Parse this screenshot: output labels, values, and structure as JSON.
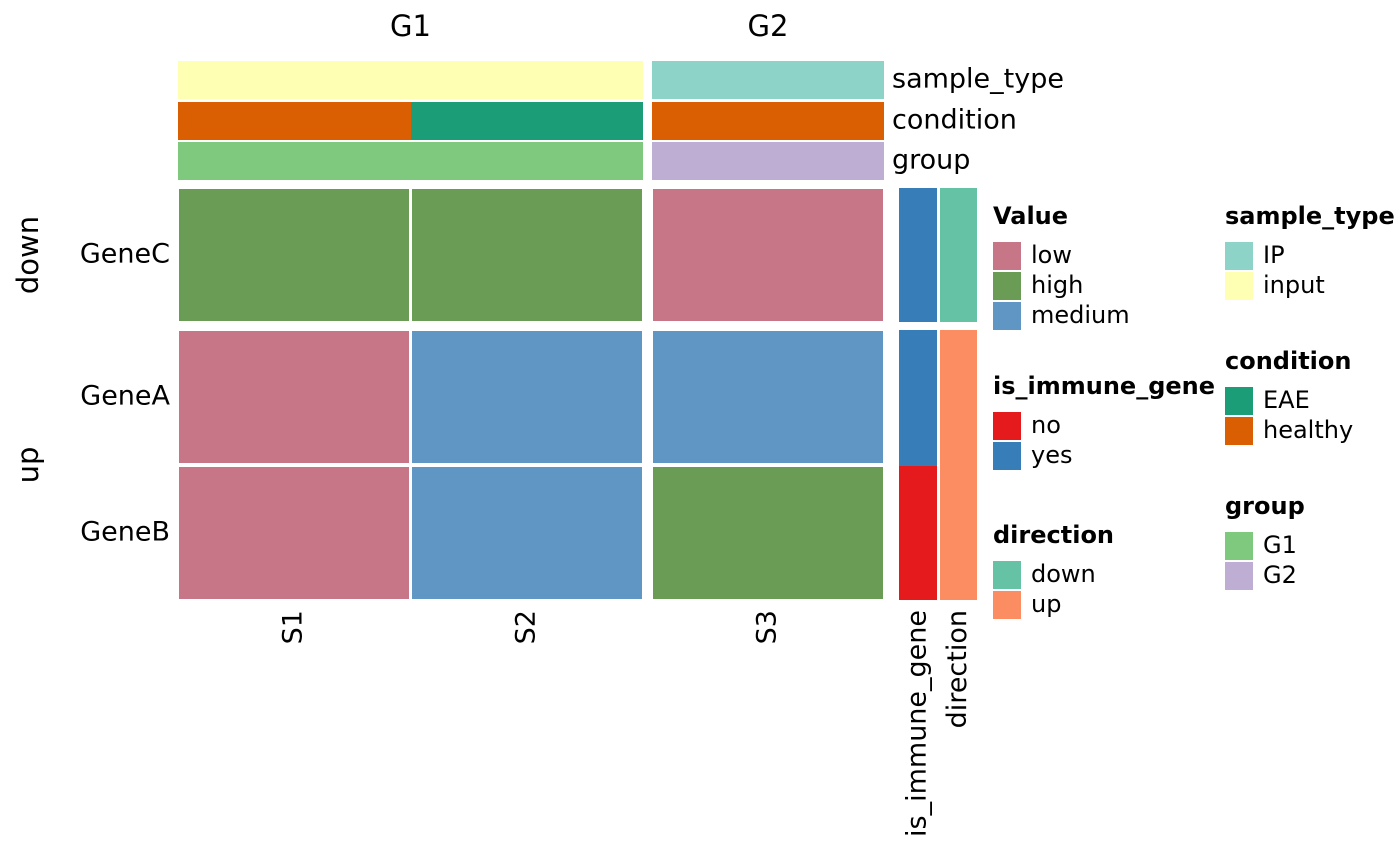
{
  "chart_data": {
    "type": "heatmap",
    "column_splits": [
      {
        "name": "G1",
        "columns": [
          "S1",
          "S2"
        ]
      },
      {
        "name": "G2",
        "columns": [
          "S3"
        ]
      }
    ],
    "row_splits": [
      {
        "name": "down",
        "rows": [
          "GeneC"
        ]
      },
      {
        "name": "up",
        "rows": [
          "GeneA",
          "GeneB"
        ]
      }
    ],
    "values": [
      [
        "high",
        "high",
        "low"
      ],
      [
        "low",
        "medium",
        "medium"
      ],
      [
        "low",
        "medium",
        "high"
      ]
    ],
    "value_legend": {
      "title": "Value",
      "levels": [
        {
          "label": "low",
          "color": "#c67686"
        },
        {
          "label": "high",
          "color": "#6a9c55"
        },
        {
          "label": "medium",
          "color": "#6096c3"
        }
      ]
    },
    "column_annotations": [
      {
        "name": "sample_type",
        "values": [
          "input",
          "input",
          "IP"
        ],
        "levels": [
          {
            "label": "IP",
            "color": "#8dd3c7"
          },
          {
            "label": "input",
            "color": "#ffffb3"
          }
        ]
      },
      {
        "name": "condition",
        "values": [
          "healthy",
          "EAE",
          "healthy"
        ],
        "levels": [
          {
            "label": "EAE",
            "color": "#1b9e77"
          },
          {
            "label": "healthy",
            "color": "#d95f02"
          }
        ]
      },
      {
        "name": "group",
        "values": [
          "G1",
          "G1",
          "G2"
        ],
        "levels": [
          {
            "label": "G1",
            "color": "#7fc97f"
          },
          {
            "label": "G2",
            "color": "#beaed4"
          }
        ]
      }
    ],
    "row_annotations": [
      {
        "name": "is_immune_gene",
        "values": [
          "yes",
          "yes",
          "no"
        ],
        "levels": [
          {
            "label": "no",
            "color": "#e41a1c"
          },
          {
            "label": "yes",
            "color": "#377eb8"
          }
        ]
      },
      {
        "name": "direction",
        "values": [
          "down",
          "up",
          "up"
        ],
        "levels": [
          {
            "label": "down",
            "color": "#66c2a5"
          },
          {
            "label": "up",
            "color": "#fc8d62"
          }
        ]
      }
    ]
  }
}
